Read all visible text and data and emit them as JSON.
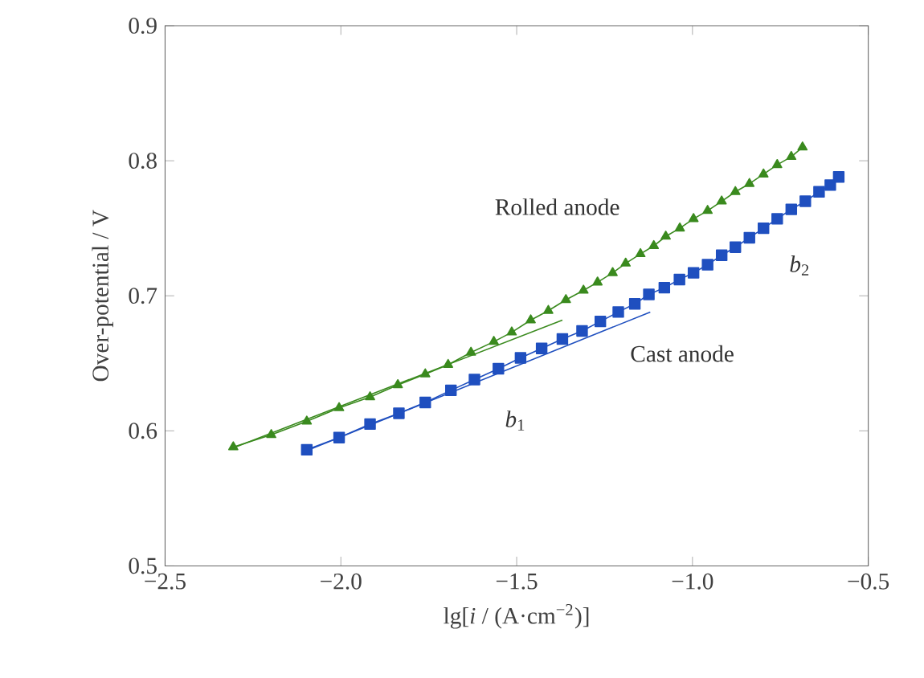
{
  "chart_data": {
    "type": "line",
    "xlabel": "lg[*i* / (A·cm$^{−2}$)]",
    "ylabel": "Over-potential / V",
    "xlim": [
      -2.5,
      -0.5
    ],
    "xticks": [
      {
        "value": -2.5,
        "label": "−2.5"
      },
      {
        "value": -2.0,
        "label": "−2.0"
      },
      {
        "value": -1.5,
        "label": "−1.5"
      },
      {
        "value": -1.0,
        "label": "−1.0"
      },
      {
        "value": -0.5,
        "label": "−0.5"
      }
    ],
    "ylim": [
      0.5,
      0.9
    ],
    "yticks": [
      0.5,
      0.6,
      0.7,
      0.8,
      0.9
    ],
    "grid": false,
    "legend": false,
    "series": [
      {
        "name": "Rolled anode",
        "color": "#3a8a1e",
        "marker": "triangle",
        "x": [
          -2.306,
          -2.198,
          -2.097,
          -2.005,
          -1.917,
          -1.838,
          -1.76,
          -1.695,
          -1.63,
          -1.565,
          -1.514,
          -1.46,
          -1.41,
          -1.36,
          -1.31,
          -1.27,
          -1.227,
          -1.19,
          -1.148,
          -1.11,
          -1.076,
          -1.036,
          -0.997,
          -0.957,
          -0.917,
          -0.878,
          -0.838,
          -0.798,
          -0.759,
          -0.719,
          -0.687
        ],
        "values": [
          0.588,
          0.597,
          0.607,
          0.617,
          0.625,
          0.634,
          0.642,
          0.649,
          0.658,
          0.666,
          0.673,
          0.682,
          0.689,
          0.697,
          0.704,
          0.71,
          0.717,
          0.724,
          0.731,
          0.737,
          0.744,
          0.75,
          0.757,
          0.763,
          0.77,
          0.777,
          0.783,
          0.79,
          0.797,
          0.803,
          0.81
        ]
      },
      {
        "name": "Cast anode",
        "color": "#1f4fbf",
        "marker": "square",
        "x": [
          -2.097,
          -2.005,
          -1.917,
          -1.835,
          -1.76,
          -1.687,
          -1.62,
          -1.552,
          -1.489,
          -1.429,
          -1.37,
          -1.314,
          -1.262,
          -1.211,
          -1.164,
          -1.124,
          -1.08,
          -1.037,
          -0.997,
          -0.957,
          -0.917,
          -0.878,
          -0.838,
          -0.798,
          -0.759,
          -0.719,
          -0.679,
          -0.64,
          -0.608,
          -0.584
        ],
        "values": [
          0.586,
          0.595,
          0.605,
          0.613,
          0.621,
          0.63,
          0.638,
          0.646,
          0.654,
          0.661,
          0.668,
          0.674,
          0.681,
          0.688,
          0.694,
          0.701,
          0.706,
          0.712,
          0.717,
          0.723,
          0.73,
          0.736,
          0.743,
          0.75,
          0.757,
          0.764,
          0.77,
          0.777,
          0.782,
          0.788
        ]
      },
      {
        "color": "#3a8a1e",
        "marker": "none",
        "x": [
          -2.31,
          -1.37
        ],
        "values": [
          0.587,
          0.682
        ]
      },
      {
        "color": "#1f4fbf",
        "marker": "none",
        "x": [
          -2.1,
          -1.12
        ],
        "values": [
          0.585,
          0.688
        ]
      }
    ],
    "annotations": [
      "*b*$_{1}$",
      "*b*$_{2}$"
    ]
  }
}
